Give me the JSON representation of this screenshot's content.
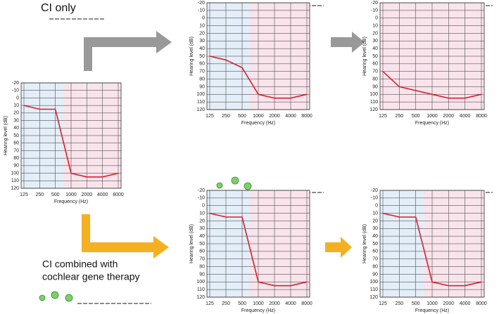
{
  "annotations": [
    "CI only",
    "CI combined with",
    "cochlear gene therapy"
  ],
  "chart_data": [
    {
      "type": "line",
      "xlabel": "Frequency (Hz)",
      "ylabel": "Hearing level (dB)",
      "categories": [
        "125",
        "250",
        "500",
        "1000",
        "2000",
        "4000",
        "8000"
      ],
      "series": [
        {
          "color": "#d8202a",
          "values": [
            10,
            15,
            15,
            100,
            105,
            105,
            100
          ]
        }
      ],
      "ylim": [
        120,
        -20
      ],
      "yticks": [
        -20,
        -10,
        0,
        10,
        20,
        30,
        40,
        50,
        60,
        70,
        80,
        90,
        100,
        110,
        120
      ],
      "grid": true,
      "background_colors": [
        "#e4eef8",
        "#f9e4ec"
      ]
    },
    {
      "type": "line",
      "xlabel": "Frequency (Hz)",
      "ylabel": "Hearing level (dB)",
      "categories": [
        "125",
        "250",
        "500",
        "1000",
        "2000",
        "4000",
        "8000"
      ],
      "series": [
        {
          "color": "#d8202a",
          "values": [
            50,
            55,
            65,
            100,
            105,
            105,
            100
          ]
        }
      ],
      "ylim": [
        120,
        -20
      ],
      "yticks": [
        -20,
        -10,
        0,
        10,
        20,
        30,
        40,
        50,
        60,
        70,
        80,
        90,
        100,
        110,
        120
      ],
      "grid": true,
      "background_colors": [
        "#e4eef8",
        "#f9e4ec"
      ]
    },
    {
      "type": "line",
      "xlabel": "Frequency (Hz)",
      "ylabel": "Hearing level (dB)",
      "categories": [
        "125",
        "250",
        "500",
        "1000",
        "2000",
        "4000",
        "8000"
      ],
      "series": [
        {
          "color": "#d8202a",
          "values": [
            70,
            90,
            95,
            100,
            105,
            105,
            100
          ]
        }
      ],
      "ylim": [
        120,
        -20
      ],
      "yticks": [
        -20,
        -10,
        0,
        10,
        20,
        30,
        40,
        50,
        60,
        70,
        80,
        90,
        100,
        110,
        120
      ],
      "grid": true,
      "background_colors": [
        "#f9e4ec"
      ]
    },
    {
      "type": "line",
      "xlabel": "Frequency (Hz)",
      "ylabel": "Hearing level (dB)",
      "categories": [
        "125",
        "250",
        "500",
        "1000",
        "2000",
        "4000",
        "8000"
      ],
      "series": [
        {
          "color": "#d8202a",
          "values": [
            10,
            15,
            15,
            100,
            105,
            105,
            100
          ]
        }
      ],
      "ylim": [
        120,
        -20
      ],
      "yticks": [
        -20,
        -10,
        0,
        10,
        20,
        30,
        40,
        50,
        60,
        70,
        80,
        90,
        100,
        110,
        120
      ],
      "grid": true,
      "background_colors": [
        "#e4eef8",
        "#f9e4ec"
      ]
    },
    {
      "type": "line",
      "xlabel": "Frequency (Hz)",
      "ylabel": "Hearing level (dB)",
      "categories": [
        "125",
        "250",
        "500",
        "1000",
        "2000",
        "4000",
        "8000"
      ],
      "series": [
        {
          "color": "#d8202a",
          "values": [
            10,
            15,
            15,
            100,
            105,
            105,
            100
          ]
        }
      ],
      "ylim": [
        120,
        -20
      ],
      "yticks": [
        -20,
        -10,
        0,
        10,
        20,
        30,
        40,
        50,
        60,
        70,
        80,
        90,
        100,
        110,
        120
      ],
      "grid": true,
      "background_colors": [
        "#e4eef8",
        "#f9e4ec"
      ]
    }
  ]
}
